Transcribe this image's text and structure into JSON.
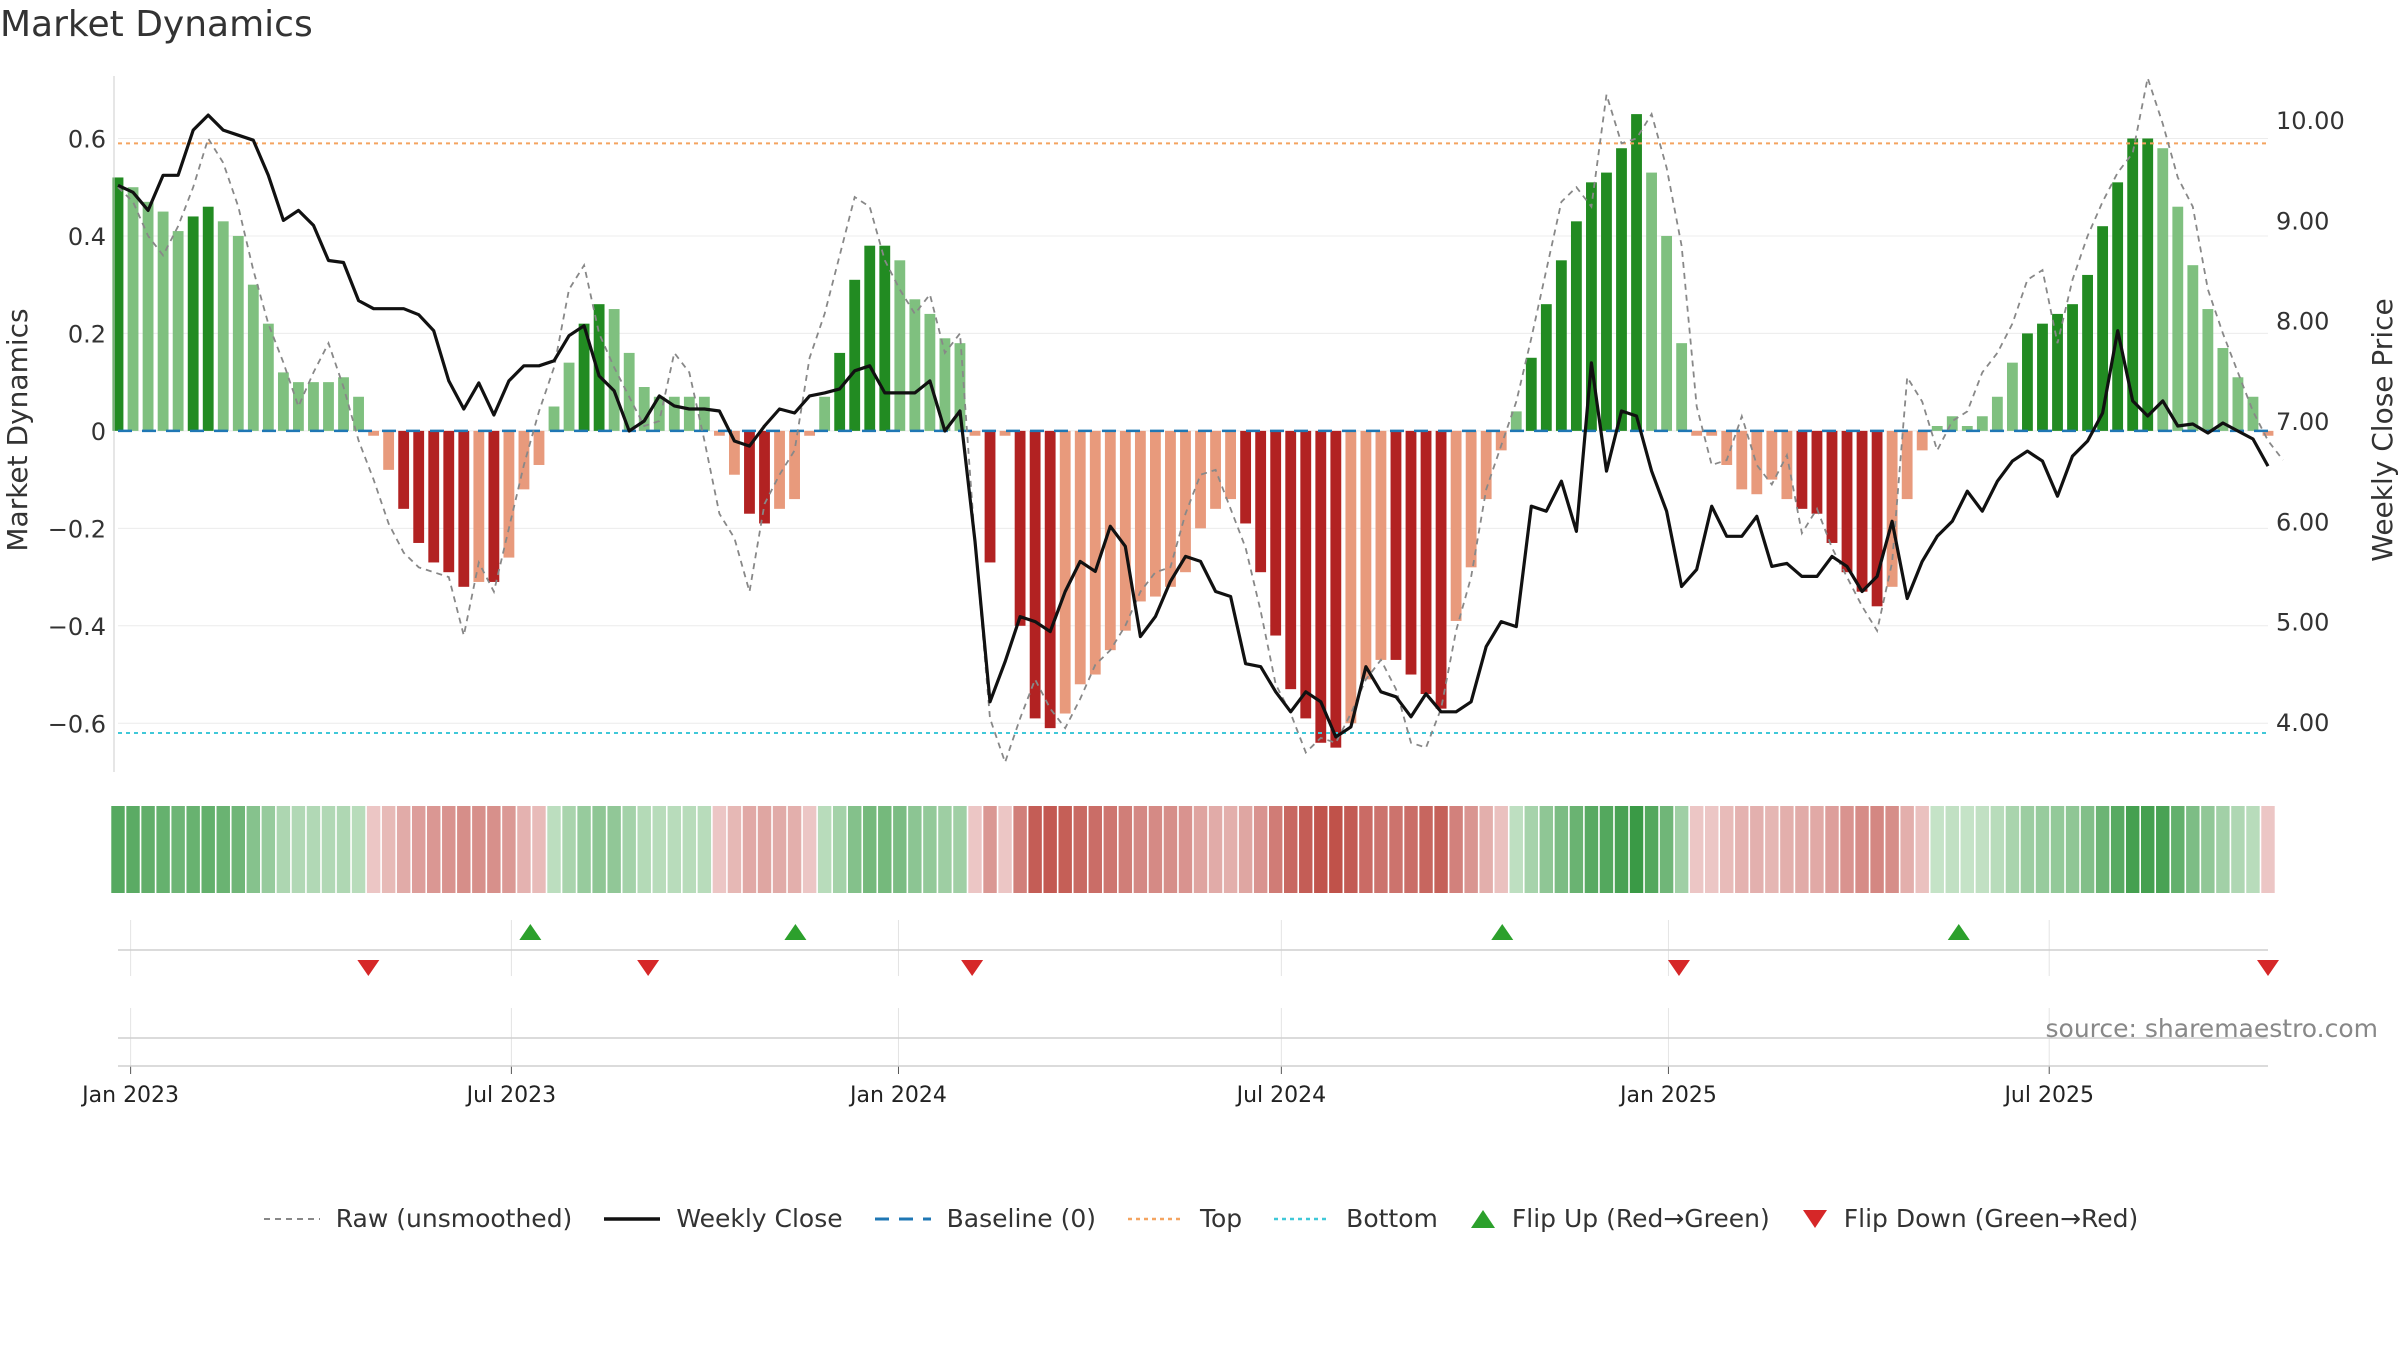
{
  "chart_data": {
    "type": "bar",
    "title": "Market Dynamics",
    "ylabel": "Market Dynamics",
    "y2label": "Weekly Close Price",
    "ylim": [
      -0.7,
      0.72
    ],
    "y2lim": [
      3.5,
      10.4
    ],
    "yticks": [
      0.6,
      0.4,
      0.2,
      0,
      -0.2,
      -0.4,
      -0.6
    ],
    "ytick_labels": [
      "0.6",
      "0.4",
      "0.2",
      "0",
      "−0.2",
      "−0.4",
      "−0.6"
    ],
    "y2ticks": [
      10,
      9,
      8,
      7,
      6,
      5,
      4
    ],
    "y2tick_labels": [
      "10.00",
      "9.00",
      "8.00",
      "7.00",
      "6.00",
      "5.00",
      "4.00"
    ],
    "xticks": [
      {
        "date": "2023-01-01",
        "label": "Jan 2023"
      },
      {
        "date": "2023-07-01",
        "label": "Jul 2023"
      },
      {
        "date": "2024-01-01",
        "label": "Jan 2024"
      },
      {
        "date": "2024-07-01",
        "label": "Jul 2024"
      },
      {
        "date": "2025-01-01",
        "label": "Jan 2025"
      },
      {
        "date": "2025-07-01",
        "label": "Jul 2025"
      }
    ],
    "x_start": "2022-12-26",
    "x_end": "2025-10-13",
    "top_line": 0.59,
    "bottom_line": -0.62,
    "baseline": 0,
    "bar_values": [
      0.52,
      0.5,
      0.47,
      0.45,
      0.41,
      0.44,
      0.46,
      0.43,
      0.4,
      0.3,
      0.22,
      0.12,
      0.1,
      0.1,
      0.1,
      0.11,
      0.07,
      -0.01,
      -0.08,
      -0.16,
      -0.23,
      -0.27,
      -0.29,
      -0.32,
      -0.31,
      -0.31,
      -0.26,
      -0.12,
      -0.07,
      0.05,
      0.14,
      0.22,
      0.26,
      0.25,
      0.16,
      0.09,
      0.07,
      0.07,
      0.07,
      0.07,
      -0.01,
      -0.09,
      -0.17,
      -0.19,
      -0.16,
      -0.14,
      -0.01,
      0.07,
      0.16,
      0.31,
      0.38,
      0.38,
      0.35,
      0.27,
      0.24,
      0.19,
      0.18,
      -0.01,
      -0.27,
      -0.01,
      -0.4,
      -0.59,
      -0.61,
      -0.58,
      -0.52,
      -0.5,
      -0.45,
      -0.41,
      -0.35,
      -0.34,
      -0.32,
      -0.29,
      -0.2,
      -0.16,
      -0.14,
      -0.19,
      -0.29,
      -0.42,
      -0.53,
      -0.59,
      -0.64,
      -0.65,
      -0.6,
      -0.51,
      -0.47,
      -0.47,
      -0.5,
      -0.54,
      -0.57,
      -0.39,
      -0.28,
      -0.14,
      -0.04,
      0.04,
      0.15,
      0.26,
      0.35,
      0.43,
      0.51,
      0.53,
      0.58,
      0.65,
      0.53,
      0.4,
      0.18,
      -0.01,
      -0.01,
      -0.07,
      -0.12,
      -0.13,
      -0.1,
      -0.14,
      -0.16,
      -0.17,
      -0.23,
      -0.29,
      -0.33,
      -0.36,
      -0.32,
      -0.14,
      -0.04,
      0.01,
      0.03,
      0.01,
      0.03,
      0.07,
      0.14,
      0.2,
      0.22,
      0.24,
      0.26,
      0.32,
      0.42,
      0.51,
      0.6,
      0.6,
      0.58,
      0.46,
      0.34,
      0.25,
      0.17,
      0.11,
      0.07,
      -0.01
    ],
    "raw_values": [
      0.5,
      0.47,
      0.4,
      0.36,
      0.42,
      0.5,
      0.6,
      0.55,
      0.46,
      0.33,
      0.22,
      0.14,
      0.05,
      0.12,
      0.18,
      0.09,
      -0.02,
      -0.1,
      -0.19,
      -0.25,
      -0.28,
      -0.29,
      -0.3,
      -0.42,
      -0.27,
      -0.33,
      -0.2,
      -0.07,
      0.04,
      0.13,
      0.29,
      0.34,
      0.2,
      0.13,
      0.07,
      0.01,
      0.02,
      0.16,
      0.12,
      -0.02,
      -0.17,
      -0.22,
      -0.33,
      -0.15,
      -0.09,
      -0.04,
      0.15,
      0.24,
      0.36,
      0.48,
      0.46,
      0.35,
      0.29,
      0.24,
      0.28,
      0.16,
      0.2,
      -0.23,
      -0.59,
      -0.68,
      -0.59,
      -0.51,
      -0.57,
      -0.61,
      -0.55,
      -0.48,
      -0.45,
      -0.4,
      -0.33,
      -0.29,
      -0.28,
      -0.17,
      -0.09,
      -0.08,
      -0.16,
      -0.24,
      -0.37,
      -0.52,
      -0.58,
      -0.66,
      -0.63,
      -0.64,
      -0.58,
      -0.51,
      -0.47,
      -0.53,
      -0.64,
      -0.65,
      -0.57,
      -0.41,
      -0.3,
      -0.12,
      -0.03,
      0.06,
      0.19,
      0.33,
      0.47,
      0.5,
      0.46,
      0.69,
      0.59,
      0.6,
      0.65,
      0.54,
      0.38,
      0.05,
      -0.07,
      -0.06,
      0.03,
      -0.07,
      -0.11,
      -0.05,
      -0.21,
      -0.16,
      -0.24,
      -0.3,
      -0.36,
      -0.41,
      -0.27,
      0.11,
      0.06,
      -0.04,
      0.02,
      0.04,
      0.12,
      0.16,
      0.22,
      0.31,
      0.33,
      0.18,
      0.31,
      0.4,
      0.47,
      0.53,
      0.57,
      0.75,
      0.63,
      0.52,
      0.46,
      0.29,
      0.2,
      0.12,
      0.04,
      -0.02,
      -0.06
    ],
    "close_values": [
      9.35,
      9.28,
      9.1,
      9.45,
      9.45,
      9.9,
      10.05,
      9.9,
      9.85,
      9.8,
      9.45,
      9.0,
      9.1,
      8.95,
      8.6,
      8.58,
      8.2,
      8.12,
      8.12,
      8.12,
      8.06,
      7.9,
      7.4,
      7.12,
      7.38,
      7.06,
      7.4,
      7.55,
      7.55,
      7.6,
      7.85,
      7.95,
      7.45,
      7.3,
      6.9,
      7.0,
      7.25,
      7.15,
      7.12,
      7.12,
      7.1,
      6.8,
      6.75,
      6.95,
      7.12,
      7.08,
      7.25,
      7.28,
      7.32,
      7.5,
      7.55,
      7.28,
      7.28,
      7.28,
      7.4,
      6.9,
      7.1,
      5.8,
      4.2,
      4.6,
      5.05,
      5.0,
      4.9,
      5.3,
      5.6,
      5.5,
      5.95,
      5.75,
      4.85,
      5.05,
      5.4,
      5.65,
      5.6,
      5.3,
      5.25,
      4.58,
      4.55,
      4.3,
      4.1,
      4.3,
      4.2,
      3.85,
      3.95,
      4.55,
      4.3,
      4.25,
      4.05,
      4.28,
      4.1,
      4.1,
      4.2,
      4.75,
      5.0,
      4.95,
      6.15,
      6.1,
      6.4,
      5.9,
      7.58,
      6.5,
      7.1,
      7.05,
      6.5,
      6.1,
      5.35,
      5.52,
      6.15,
      5.85,
      5.85,
      6.05,
      5.55,
      5.58,
      5.45,
      5.45,
      5.65,
      5.55,
      5.3,
      5.45,
      6.0,
      5.23,
      5.6,
      5.85,
      6.0,
      6.3,
      6.1,
      6.4,
      6.6,
      6.7,
      6.6,
      6.25,
      6.65,
      6.8,
      7.08,
      7.9,
      7.2,
      7.05,
      7.2,
      6.95,
      6.97,
      6.88,
      6.98,
      6.9,
      6.82,
      6.55
    ],
    "heat_strip": "sign-coloured intensity of bar_values",
    "flip_up_dates": [
      "2023-07-10",
      "2023-11-13",
      "2024-10-14",
      "2025-05-19"
    ],
    "flip_down_dates": [
      "2023-04-24",
      "2023-09-04",
      "2024-02-05",
      "2025-01-06",
      "2025-10-13"
    ],
    "colors": {
      "strong_green": "#228b22",
      "light_green": "#7fc07f",
      "strong_red": "#b22222",
      "light_red": "#e89a7c",
      "top_line": "#f4a460",
      "bottom_line": "#40c8d8",
      "baseline": "#1f77b4",
      "close_line": "#111111",
      "raw_line": "#888888",
      "flip_up": "#2ca02c",
      "flip_down": "#d62728"
    },
    "legend": [
      {
        "label": "Raw (unsmoothed)",
        "icon": "dashed-grey-line"
      },
      {
        "label": "Weekly Close",
        "icon": "solid-black-line"
      },
      {
        "label": "Baseline (0)",
        "icon": "dashed-blue-line"
      },
      {
        "label": "Top",
        "icon": "dotted-orange-line"
      },
      {
        "label": "Bottom",
        "icon": "dotted-cyan-line"
      },
      {
        "label": "Flip Up (Red→Green)",
        "icon": "green-up-triangle"
      },
      {
        "label": "Flip Down (Green→Red)",
        "icon": "red-down-triangle"
      }
    ],
    "source": "source: sharemaestro.com"
  }
}
